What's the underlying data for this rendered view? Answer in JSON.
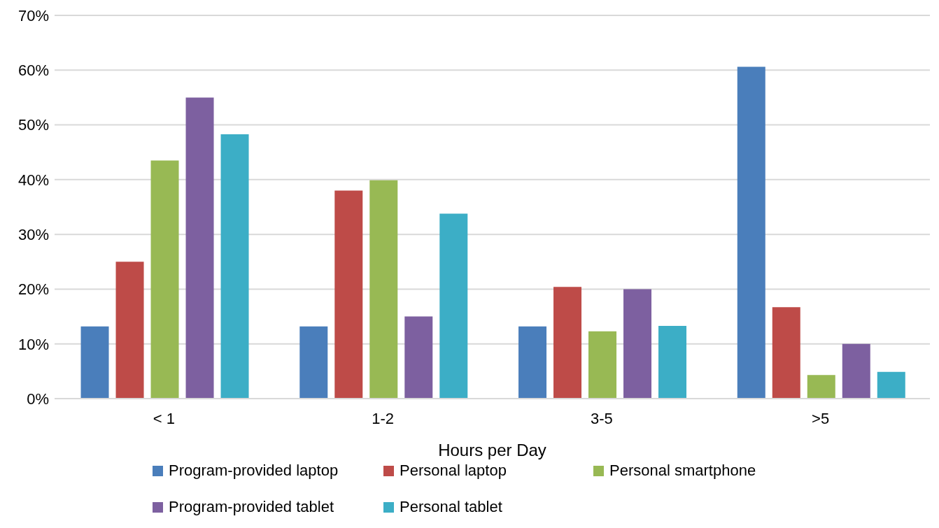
{
  "chart_data": {
    "type": "bar",
    "xlabel": "Hours per Day",
    "categories": [
      "< 1",
      "1-2",
      "3-5",
      ">5"
    ],
    "series": [
      {
        "name": "Program-provided laptop",
        "color": "#4a7ebb",
        "values": [
          13.2,
          13.2,
          13.2,
          60.6
        ]
      },
      {
        "name": "Personal laptop",
        "color": "#be4b48",
        "values": [
          25,
          38,
          20.4,
          16.7
        ]
      },
      {
        "name": "Personal smartphone",
        "color": "#98b954",
        "values": [
          43.5,
          39.9,
          12.3,
          4.3
        ]
      },
      {
        "name": "Program-provided tablet",
        "color": "#7d60a0",
        "values": [
          55,
          15,
          20,
          10
        ]
      },
      {
        "name": "Personal tablet",
        "color": "#3caec6",
        "values": [
          48.3,
          33.8,
          13.3,
          4.9
        ]
      }
    ],
    "ylim": [
      0,
      70
    ],
    "yticks": [
      {
        "value": 0,
        "label": "0%"
      },
      {
        "value": 10,
        "label": "10%"
      },
      {
        "value": 20,
        "label": "20%"
      },
      {
        "value": 30,
        "label": "30%"
      },
      {
        "value": 40,
        "label": "40%"
      },
      {
        "value": 50,
        "label": "50%"
      },
      {
        "value": 60,
        "label": "60%"
      },
      {
        "value": 70,
        "label": "70%"
      }
    ],
    "grid": "y",
    "legend": "bottom"
  }
}
